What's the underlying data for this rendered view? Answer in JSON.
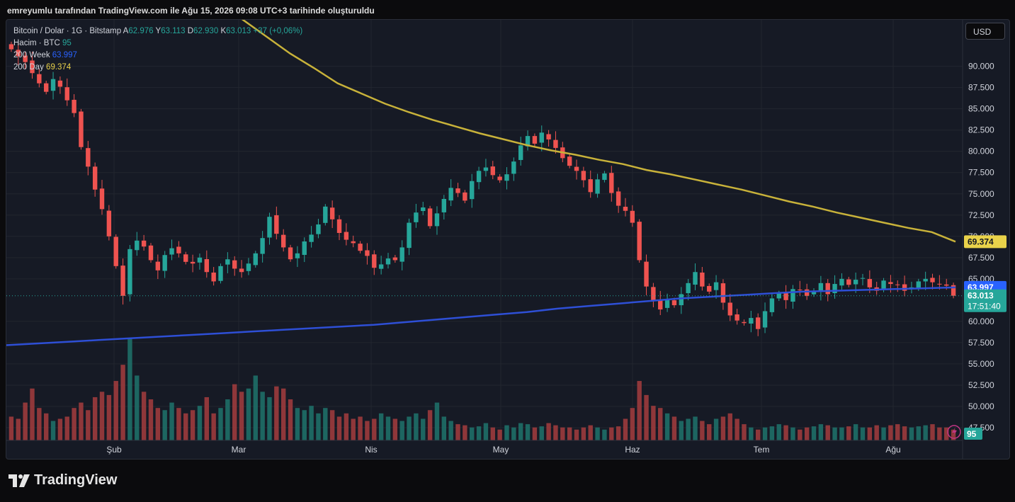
{
  "caption": "emreyumlu tarafından TradingView.com ile Ağu 15, 2026 09:08 UTC+3 tarihinde oluşturuldu",
  "brand": {
    "name": "TradingView",
    "icon": "tradingview-logo-icon"
  },
  "currency_button": "USD",
  "legend": {
    "symbol": "Bitcoin / Dolar · 1G · Bitstamp",
    "o_label": "A",
    "o_value": "62.976",
    "h_label": "Y",
    "h_value": "63.113",
    "l_label": "D",
    "l_value": "62.930",
    "c_label": "K",
    "c_value": "63.013",
    "change": "+37 (+0,06%)",
    "volume_label": "Hacim · BTC",
    "volume_value": "95",
    "ma_week_label": "200 Week",
    "ma_week_value": "63.997",
    "ma_day_label": "200 Day",
    "ma_day_value": "69.374"
  },
  "colors": {
    "up": "#26a69a",
    "down": "#ef5350",
    "ma_week": "#2e4fd6",
    "ma_day": "#c8b23a",
    "background": "#161a25",
    "grid": "#22262f"
  },
  "chart_data": {
    "type": "candlestick",
    "x_ticks": [
      "Şub",
      "Mar",
      "Nis",
      "May",
      "Haz",
      "Tem",
      "Ağu"
    ],
    "y_ticks": [
      "90.000",
      "87.500",
      "85.000",
      "82.500",
      "80.000",
      "77.500",
      "75.000",
      "72.500",
      "70.000",
      "67.500",
      "65.000",
      "60.000",
      "57.500",
      "55.000",
      "52.500",
      "50.000",
      "47.500"
    ],
    "ylim": [
      46000,
      94800
    ],
    "price_badges": {
      "ma_day": "69.374",
      "ma_week": "63.997",
      "last": "63.013",
      "countdown": "17:51:40",
      "volume": "95"
    },
    "close_series": [
      92000,
      91200,
      90500,
      89200,
      88000,
      87000,
      88500,
      87600,
      86000,
      84500,
      80500,
      78200,
      75500,
      73200,
      70000,
      66500,
      63000,
      68500,
      69500,
      68800,
      67200,
      66000,
      67800,
      68600,
      68000,
      67000,
      66800,
      67500,
      65800,
      64700,
      66500,
      67300,
      66200,
      65800,
      66800,
      68000,
      69800,
      72300,
      70300,
      68700,
      67300,
      68000,
      69400,
      70200,
      71400,
      73500,
      72000,
      70400,
      69600,
      69200,
      68300,
      67700,
      66300,
      66700,
      67400,
      67200,
      68700,
      71600,
      72800,
      73400,
      71200,
      72700,
      74400,
      75700,
      75100,
      74200,
      76500,
      77700,
      78100,
      77200,
      76600,
      77300,
      78800,
      80700,
      81800,
      80900,
      82200,
      81400,
      80400,
      79200,
      78300,
      77700,
      76600,
      75200,
      76700,
      77400,
      75100,
      73600,
      73000,
      71600,
      67200,
      64100,
      62500,
      61400,
      62600,
      61900,
      63200,
      64500,
      65800,
      64100,
      63500,
      64600,
      62200,
      60700,
      60100,
      59800,
      60400,
      59100,
      61200,
      62700,
      63300,
      62500,
      63800,
      63700,
      63000,
      63600,
      64500,
      63200,
      64400,
      65000,
      64300,
      64900,
      65100,
      64000,
      63600,
      64800,
      64400,
      64300,
      63600,
      64000,
      64700,
      65000,
      64600,
      64400,
      64200,
      63013
    ],
    "ma_day_series": [
      97500,
      95500,
      93500,
      91500,
      89800,
      88000,
      86800,
      85600,
      84600,
      83700,
      82900,
      82100,
      81400,
      80700,
      80100,
      79600,
      79000,
      78500,
      77800,
      77300,
      76700,
      76100,
      75500,
      74800,
      74100,
      73500,
      72800,
      72200,
      71600,
      71000,
      70500,
      69374
    ],
    "ma_week_series": [
      57200,
      57400,
      57600,
      57800,
      58000,
      58200,
      58400,
      58600,
      58800,
      59000,
      59200,
      59400,
      59600,
      59900,
      60200,
      60500,
      60800,
      61100,
      61500,
      61800,
      62100,
      62400,
      62700,
      62900,
      63100,
      63300,
      63500,
      63600,
      63700,
      63800,
      63900,
      63997
    ],
    "volume_series": [
      22,
      20,
      35,
      48,
      30,
      25,
      18,
      20,
      22,
      30,
      35,
      28,
      40,
      45,
      42,
      55,
      70,
      95,
      60,
      45,
      38,
      30,
      28,
      35,
      30,
      25,
      28,
      32,
      40,
      25,
      30,
      38,
      52,
      45,
      48,
      60,
      45,
      40,
      50,
      48,
      38,
      30,
      28,
      32,
      25,
      30,
      28,
      22,
      25,
      20,
      22,
      18,
      20,
      25,
      22,
      20,
      18,
      22,
      25,
      20,
      28,
      35,
      22,
      18,
      15,
      14,
      12,
      13,
      16,
      12,
      10,
      14,
      12,
      16,
      15,
      12,
      13,
      16,
      14,
      12,
      12,
      10,
      12,
      14,
      12,
      10,
      12,
      13,
      20,
      30,
      55,
      42,
      32,
      30,
      25,
      22,
      18,
      20,
      22,
      18,
      15,
      20,
      22,
      25,
      20,
      15,
      12,
      10,
      12,
      13,
      15,
      14,
      12,
      10,
      12,
      13,
      15,
      14,
      12,
      12,
      13,
      15,
      12,
      12,
      14,
      12,
      14,
      15,
      13,
      12,
      13,
      14,
      15,
      12,
      12,
      10
    ]
  }
}
